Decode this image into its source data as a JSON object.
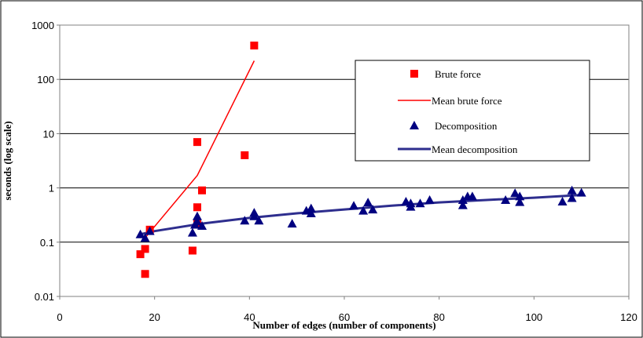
{
  "chart_data": {
    "type": "scatter",
    "title": "",
    "xlabel": "Number of edges (number of components)",
    "ylabel": "seconds (log scale)",
    "xlim": [
      0,
      120
    ],
    "ylim": [
      0.01,
      1000
    ],
    "y_scale": "log",
    "x_ticks": [
      0,
      20,
      40,
      60,
      80,
      100,
      120
    ],
    "x_tick_labels": [
      "0",
      "20",
      "40",
      "60",
      "80",
      "100",
      "120"
    ],
    "y_ticks": [
      0.01,
      0.1,
      1,
      10,
      100,
      1000
    ],
    "y_tick_labels": [
      "0.01",
      "0.1",
      "1",
      "10",
      "100",
      "1000"
    ],
    "grid": "horizontal major gridlines",
    "legend_position": "right, upper half of plot",
    "series": [
      {
        "name": "Brute force",
        "kind": "scatter",
        "marker": "square",
        "color": "#ff0000",
        "points": [
          [
            17,
            0.06
          ],
          [
            18,
            0.026
          ],
          [
            18,
            0.075
          ],
          [
            19,
            0.17
          ],
          [
            28,
            0.07
          ],
          [
            29,
            7
          ],
          [
            29,
            0.44
          ],
          [
            29,
            0.22
          ],
          [
            30,
            0.9
          ],
          [
            39,
            4
          ],
          [
            41,
            420
          ]
        ]
      },
      {
        "name": "Mean brute force",
        "kind": "line",
        "color": "#ff0000",
        "points": [
          [
            18,
            0.12
          ],
          [
            29,
            1.7
          ],
          [
            41,
            220
          ]
        ]
      },
      {
        "name": "Decomposition",
        "kind": "scatter",
        "marker": "triangle",
        "color": "#000080",
        "points": [
          [
            17,
            0.14
          ],
          [
            18,
            0.12
          ],
          [
            19,
            0.16
          ],
          [
            28,
            0.15
          ],
          [
            28.5,
            0.21
          ],
          [
            29,
            0.24
          ],
          [
            29,
            0.3
          ],
          [
            30,
            0.2
          ],
          [
            39,
            0.25
          ],
          [
            41,
            0.35
          ],
          [
            41,
            0.3
          ],
          [
            42,
            0.25
          ],
          [
            49,
            0.22
          ],
          [
            52,
            0.38
          ],
          [
            53,
            0.42
          ],
          [
            53,
            0.34
          ],
          [
            62,
            0.47
          ],
          [
            64,
            0.38
          ],
          [
            65,
            0.54
          ],
          [
            66,
            0.4
          ],
          [
            73,
            0.56
          ],
          [
            74,
            0.52
          ],
          [
            74,
            0.45
          ],
          [
            76,
            0.52
          ],
          [
            78,
            0.6
          ],
          [
            85,
            0.6
          ],
          [
            85,
            0.48
          ],
          [
            86,
            0.7
          ],
          [
            87,
            0.7
          ],
          [
            94,
            0.6
          ],
          [
            96,
            0.8
          ],
          [
            97,
            0.7
          ],
          [
            97,
            0.55
          ],
          [
            106,
            0.56
          ],
          [
            108,
            0.9
          ],
          [
            108,
            0.65
          ],
          [
            110,
            0.82
          ]
        ]
      },
      {
        "name": "Mean decomposition",
        "kind": "line",
        "color": "#2e2e8e",
        "points": [
          [
            17,
            0.14
          ],
          [
            20,
            0.16
          ],
          [
            30,
            0.22
          ],
          [
            40,
            0.28
          ],
          [
            50,
            0.34
          ],
          [
            60,
            0.4
          ],
          [
            70,
            0.47
          ],
          [
            80,
            0.54
          ],
          [
            90,
            0.6
          ],
          [
            100,
            0.66
          ],
          [
            110,
            0.74
          ]
        ]
      }
    ]
  }
}
